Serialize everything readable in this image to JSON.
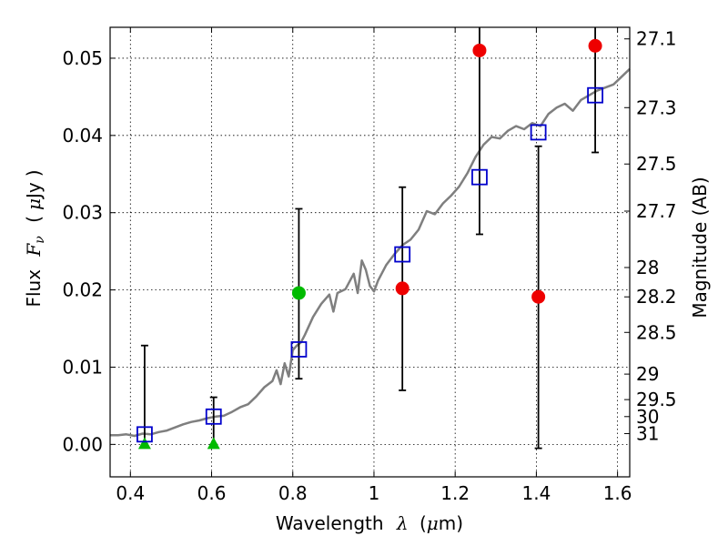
{
  "chart_data": {
    "type": "scatter",
    "xlabel": {
      "prefix": "Wavelength",
      "symbol": "λ",
      "unit_open": "(",
      "unit_mu": "μ",
      "unit_rest": "m)"
    },
    "ylabel": {
      "prefix": "Flux",
      "symbol": "F",
      "subscript": "ν",
      "unit_open": "(",
      "unit_mu": "μ",
      "unit_rest": "Jy",
      "unit_close": ")"
    },
    "y2label": "Magnitude (AB)",
    "xlim": [
      0.35,
      1.63
    ],
    "ylim": [
      -0.0042,
      0.054
    ],
    "xticks": [
      0.4,
      0.6,
      0.8,
      1.0,
      1.2,
      1.4,
      1.6
    ],
    "xtick_labels": [
      "0.4",
      "0.6",
      "0.8",
      "1",
      "1.2",
      "1.4",
      "1.6"
    ],
    "yticks": [
      0.0,
      0.01,
      0.02,
      0.03,
      0.04,
      0.05
    ],
    "ytick_labels": [
      "0.00",
      "0.01",
      "0.02",
      "0.03",
      "0.04",
      "0.05"
    ],
    "y2ticks": [
      {
        "label": "27.1",
        "flux": 0.0525
      },
      {
        "label": "27.3",
        "flux": 0.0436
      },
      {
        "label": "27.5",
        "flux": 0.0363
      },
      {
        "label": "27.7",
        "flux": 0.0302
      },
      {
        "label": "28",
        "flux": 0.0229
      },
      {
        "label": "28.2",
        "flux": 0.0191
      },
      {
        "label": "28.5",
        "flux": 0.0145
      },
      {
        "label": "29",
        "flux": 0.0091
      },
      {
        "label": "29.5",
        "flux": 0.0058
      },
      {
        "label": "30",
        "flux": 0.0036
      },
      {
        "label": "31",
        "flux": 0.0014
      }
    ],
    "grid": true,
    "colors": {
      "model": "#7f7f7f",
      "model_points": "#0000cc",
      "detections": "#ee0000",
      "green_points": "#00bb00",
      "errorbars": "#000000"
    },
    "model_spectrum": {
      "x": [
        0.35,
        0.37,
        0.39,
        0.41,
        0.43,
        0.45,
        0.47,
        0.49,
        0.51,
        0.53,
        0.55,
        0.57,
        0.59,
        0.61,
        0.63,
        0.65,
        0.67,
        0.69,
        0.71,
        0.73,
        0.75,
        0.76,
        0.77,
        0.78,
        0.79,
        0.8,
        0.81,
        0.82,
        0.83,
        0.85,
        0.87,
        0.89,
        0.9,
        0.91,
        0.93,
        0.95,
        0.96,
        0.97,
        0.98,
        0.99,
        1.0,
        1.01,
        1.03,
        1.05,
        1.07,
        1.09,
        1.11,
        1.13,
        1.15,
        1.17,
        1.19,
        1.21,
        1.23,
        1.25,
        1.27,
        1.29,
        1.31,
        1.33,
        1.35,
        1.37,
        1.39,
        1.41,
        1.43,
        1.45,
        1.47,
        1.49,
        1.51,
        1.53,
        1.55,
        1.57,
        1.59,
        1.61,
        1.63
      ],
      "y": [
        0.0012,
        0.0012,
        0.0013,
        0.0011,
        0.0014,
        0.0013,
        0.0016,
        0.0018,
        0.0022,
        0.0026,
        0.0029,
        0.0031,
        0.0034,
        0.0036,
        0.0037,
        0.0042,
        0.0048,
        0.0052,
        0.0062,
        0.0074,
        0.0082,
        0.0096,
        0.0078,
        0.0105,
        0.0088,
        0.0122,
        0.0128,
        0.0132,
        0.0142,
        0.0165,
        0.0182,
        0.0194,
        0.0172,
        0.0196,
        0.0201,
        0.0221,
        0.0196,
        0.0238,
        0.0226,
        0.0205,
        0.0198,
        0.0212,
        0.0232,
        0.0246,
        0.0258,
        0.0265,
        0.0278,
        0.0302,
        0.0298,
        0.0312,
        0.0322,
        0.0334,
        0.0351,
        0.0372,
        0.0388,
        0.0398,
        0.0396,
        0.0406,
        0.0412,
        0.0408,
        0.0416,
        0.0412,
        0.0428,
        0.0436,
        0.0441,
        0.0432,
        0.0446,
        0.0452,
        0.0458,
        0.0462,
        0.0466,
        0.0476,
        0.0486
      ]
    },
    "model_points": {
      "x": [
        0.435,
        0.605,
        0.815,
        1.07,
        1.26,
        1.405,
        1.545
      ],
      "y": [
        0.0013,
        0.0036,
        0.0123,
        0.0246,
        0.0346,
        0.0404,
        0.0452
      ]
    },
    "detections": {
      "x": [
        1.07,
        1.26,
        1.405,
        1.545
      ],
      "y": [
        0.0202,
        0.051,
        0.0191,
        0.0516
      ]
    },
    "green_points": {
      "x": [
        0.815
      ],
      "y": [
        0.0196
      ]
    },
    "green_upper_limits": {
      "x": [
        0.435,
        0.605
      ],
      "y": [
        0.0,
        0.0
      ]
    },
    "errorbars": [
      {
        "x": 0.435,
        "low": 0.0,
        "high": 0.0128
      },
      {
        "x": 0.605,
        "low": 0.0,
        "high": 0.0061
      },
      {
        "x": 0.815,
        "low": 0.0085,
        "high": 0.0305
      },
      {
        "x": 1.07,
        "low": 0.007,
        "high": 0.0333
      },
      {
        "x": 1.26,
        "low": 0.0272,
        "high": 0.054
      },
      {
        "x": 1.405,
        "low": -0.0005,
        "high": 0.0386
      },
      {
        "x": 1.545,
        "low": 0.0378,
        "high": 0.054
      }
    ]
  }
}
